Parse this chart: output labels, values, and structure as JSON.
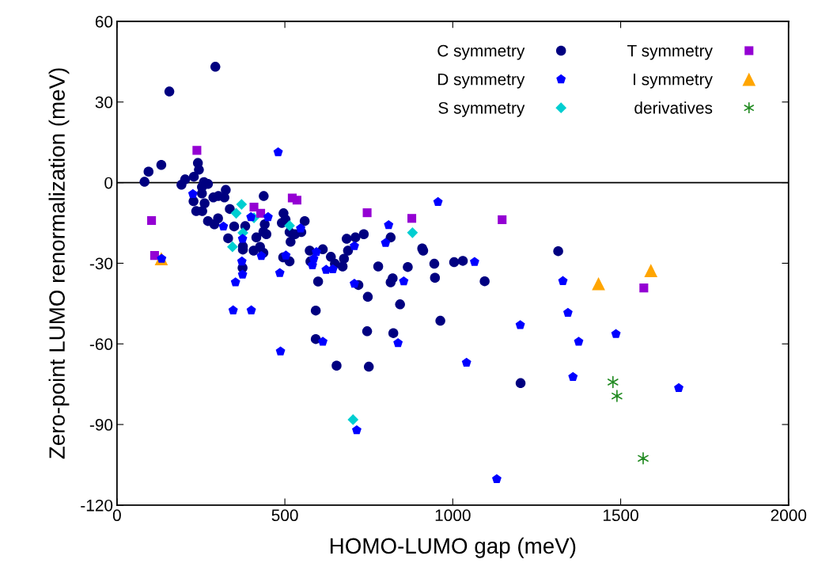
{
  "chart_data": {
    "type": "scatter",
    "xlabel": "HOMO-LUMO gap (meV)",
    "ylabel": "Zero-point LUMO renormalization (meV)",
    "xlim": [
      0,
      2000
    ],
    "xticks": [
      0,
      500,
      1000,
      1500,
      2000
    ],
    "ylim": [
      -120,
      60
    ],
    "yticks": [
      -120,
      -90,
      -60,
      -30,
      0,
      30,
      60
    ],
    "grid": false,
    "legend": "top right",
    "ref_lines": [
      {
        "axis": "y",
        "value": 0,
        "color": "#000000"
      }
    ],
    "series": [
      {
        "name": "C symmetry",
        "color": "#000080",
        "marker": "circle",
        "x": [
          293,
          156,
          132,
          94,
          82,
          241,
          244,
          229,
          203,
          192,
          259,
          271,
          253,
          253,
          228,
          261,
          287,
          302,
          320,
          324,
          236,
          254,
          336,
          437,
          271,
          290,
          301,
          349,
          382,
          331,
          375,
          375,
          415,
          407,
          426,
          436,
          440,
          436,
          445,
          374,
          496,
          502,
          491,
          514,
          530,
          549,
          517,
          495,
          514,
          559,
          574,
          613,
          576,
          637,
          684,
          710,
          735,
          688,
          676,
          672,
          649,
          599,
          592,
          592,
          747,
          719,
          778,
          815,
          821,
          815,
          866,
          843,
          909,
          912,
          945,
          947,
          1004,
          1030,
          654,
          745,
          750,
          823,
          963,
          1095,
          1202,
          1314
        ],
        "values": [
          43.1,
          33.9,
          6.6,
          4.1,
          0.3,
          7.3,
          4.8,
          2.2,
          1.2,
          -0.8,
          0.2,
          -0.5,
          -1.6,
          -4.0,
          -6.9,
          -7.7,
          -5.5,
          -5.0,
          -5.5,
          -2.7,
          -10.6,
          -10.6,
          -9.8,
          -5.0,
          -14.3,
          -15.5,
          -13.3,
          -16.3,
          -16.2,
          -20.7,
          -23.7,
          -24.9,
          -20.4,
          -25.3,
          -23.9,
          -26.1,
          -15.5,
          -18.3,
          -19.2,
          -31.7,
          -11.4,
          -13.7,
          -15.0,
          -18.4,
          -19.2,
          -18.4,
          -22.0,
          -27.8,
          -29.3,
          -14.3,
          -25.3,
          -24.8,
          -29.3,
          -27.6,
          -20.9,
          -20.4,
          -19.2,
          -25.3,
          -28.3,
          -31.2,
          -30.2,
          -36.8,
          -47.6,
          -58.2,
          -42.5,
          -38.1,
          -31.2,
          -20.4,
          -35.6,
          -37.1,
          -31.4,
          -45.3,
          -24.5,
          -25.3,
          -30.2,
          -35.4,
          -29.6,
          -29.1,
          -68.1,
          -55.3,
          -68.5,
          -56.0,
          -51.4,
          -36.7,
          -74.6,
          -25.5
        ]
      },
      {
        "name": "D symmetry",
        "color": "#0000ff",
        "x": [
          480,
          226,
          317,
          374,
          372,
          374,
          353,
          346,
          400,
          430,
          503,
          450,
          399,
          547,
          133,
          485,
          487,
          594,
          586,
          582,
          623,
          643,
          707,
          707,
          800,
          809,
          854,
          956,
          1065,
          1041,
          1131,
          1201,
          1328,
          1343,
          1358,
          1375,
          1486,
          1673,
          613,
          837,
          714
        ],
        "values": [
          11.3,
          -4.2,
          -16.3,
          -20.9,
          -29.3,
          -34.2,
          -37.1,
          -47.5,
          -47.5,
          -27.3,
          -27.1,
          -12.8,
          -12.8,
          -17.0,
          -28.3,
          -33.6,
          -62.8,
          -25.8,
          -28.3,
          -30.7,
          -32.4,
          -32.2,
          -23.6,
          -37.6,
          -22.4,
          -15.8,
          -36.7,
          -7.2,
          -29.5,
          -67.0,
          -110.3,
          -53.0,
          -36.6,
          -48.4,
          -72.3,
          -59.2,
          -56.3,
          -76.4,
          -59.2,
          -59.7,
          -92.1
        ]
      },
      {
        "name": "S symmetry",
        "color": "#00ced1",
        "marker": "diamond",
        "x": [
          371,
          355,
          408,
          375,
          344,
          514,
          880,
          703
        ],
        "values": [
          -8.1,
          -11.4,
          -13.1,
          -18.7,
          -23.9,
          -16.0,
          -18.6,
          -88.2
        ]
      },
      {
        "name": "T symmetry",
        "color": "#9400d3",
        "marker": "square",
        "x": [
          238,
          103,
          112,
          408,
          428,
          522,
          536,
          745,
          878,
          1147,
          1569
        ],
        "values": [
          12.0,
          -14.1,
          -27.1,
          -9.1,
          -11.4,
          -5.7,
          -6.5,
          -11.2,
          -13.3,
          -13.8,
          -39.2
        ]
      },
      {
        "name": "I symmetry",
        "color": "#ffa500",
        "marker": "triangle",
        "x": [
          132,
          1434,
          1590
        ],
        "values": [
          -28.3,
          -37.6,
          -32.7
        ]
      },
      {
        "name": "derivatives",
        "color": "#228b22",
        "marker": "cross",
        "x": [
          1477,
          1489,
          1567
        ],
        "values": [
          -74.2,
          -79.4,
          -102.6
        ]
      }
    ]
  }
}
